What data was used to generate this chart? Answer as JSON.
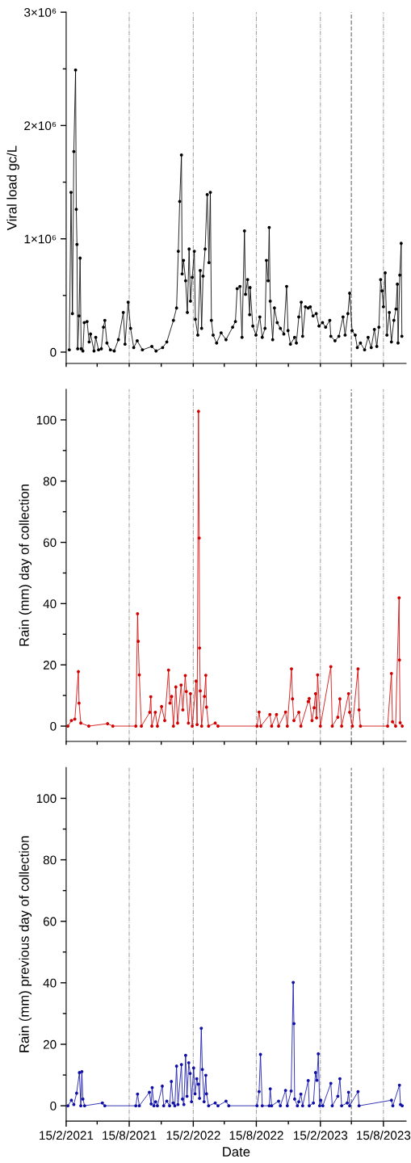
{
  "chart_data": [
    {
      "type": "line",
      "ylabel": "Viral load gc/L",
      "xlim": [
        "2021-02-15",
        "2023-10-19"
      ],
      "xticks": [
        {
          "value": "2021-02-15",
          "label": null
        },
        {
          "value": "2021-05-15",
          "label": null
        },
        {
          "value": "2021-08-15",
          "label": null
        },
        {
          "value": "2021-11-15",
          "label": null
        },
        {
          "value": "2022-02-15",
          "label": null
        },
        {
          "value": "2022-05-15",
          "label": null
        },
        {
          "value": "2022-08-15",
          "label": null
        },
        {
          "value": "2022-11-15",
          "label": null
        },
        {
          "value": "2023-02-15",
          "label": null
        },
        {
          "value": "2023-05-15",
          "label": null
        },
        {
          "value": "2023-08-15",
          "label": null
        }
      ],
      "ylim": [
        -100000,
        3000000
      ],
      "yticks": [
        {
          "value": 0,
          "label": "0"
        },
        {
          "value": 500000,
          "label": null
        },
        {
          "value": 1000000,
          "label": "1×10⁶"
        },
        {
          "value": 1500000,
          "label": null
        },
        {
          "value": 2000000,
          "label": "2×10⁶"
        },
        {
          "value": 2500000,
          "label": null
        },
        {
          "value": 3000000,
          "label": "3×10⁶"
        }
      ],
      "tick_labels": "y",
      "grid": "x",
      "marker": "circle",
      "line_style": "solid",
      "ref_lines": [
        {
          "axis": "x",
          "value": "2023-05-15",
          "label": null,
          "color": "#888888",
          "line_style": "dashed"
        }
      ],
      "series": [
        {
          "color": "#000000",
          "x": [
            "2021-02-24",
            "2021-03-01",
            "2021-03-05",
            "2021-03-09",
            "2021-03-14",
            "2021-03-16",
            "2021-03-18",
            "2021-03-20",
            "2021-03-24",
            "2021-03-27",
            "2021-03-30",
            "2021-04-04",
            "2021-04-08",
            "2021-04-16",
            "2021-04-22",
            "2021-04-26",
            "2021-05-06",
            "2021-05-11",
            "2021-05-19",
            "2021-05-27",
            "2021-06-02",
            "2021-06-06",
            "2021-06-12",
            "2021-06-22",
            "2021-07-03",
            "2021-07-15",
            "2021-07-29",
            "2021-08-03",
            "2021-08-12",
            "2021-08-19",
            "2021-08-28",
            "2021-09-07",
            "2021-09-22",
            "2021-10-19",
            "2021-10-31",
            "2021-11-19",
            "2021-12-01",
            "2021-12-20",
            "2021-12-29",
            "2022-01-03",
            "2022-01-07",
            "2022-01-12",
            "2022-01-14",
            "2022-01-18",
            "2022-01-24",
            "2022-01-29",
            "2022-02-03",
            "2022-02-07",
            "2022-02-12",
            "2022-02-18",
            "2022-02-21",
            "2022-02-28",
            "2022-03-07",
            "2022-03-11",
            "2022-03-15",
            "2022-03-21",
            "2022-03-27",
            "2022-04-01",
            "2022-04-05",
            "2022-04-08",
            "2022-04-13",
            "2022-04-23",
            "2022-05-06",
            "2022-05-20",
            "2022-06-08",
            "2022-06-16",
            "2022-06-21",
            "2022-06-29",
            "2022-07-05",
            "2022-07-12",
            "2022-07-15",
            "2022-07-21",
            "2022-07-27",
            "2022-07-28",
            "2022-08-05",
            "2022-08-14",
            "2022-08-25",
            "2022-09-01",
            "2022-09-09",
            "2022-09-13",
            "2022-09-18",
            "2022-09-21",
            "2022-09-24",
            "2022-10-01",
            "2022-10-06",
            "2022-10-14",
            "2022-10-23",
            "2022-11-02",
            "2022-11-10",
            "2022-11-14",
            "2022-11-21",
            "2022-12-03",
            "2022-12-08",
            "2022-12-15",
            "2022-12-22",
            "2022-12-26",
            "2023-01-03",
            "2023-01-11",
            "2023-01-17",
            "2023-01-25",
            "2023-02-03",
            "2023-02-11",
            "2023-02-21",
            "2023-03-02",
            "2023-03-14",
            "2023-03-17",
            "2023-03-29",
            "2023-04-09",
            "2023-04-21",
            "2023-04-27",
            "2023-05-05",
            "2023-05-10",
            "2023-05-17",
            "2023-05-26",
            "2023-06-01",
            "2023-06-10",
            "2023-06-22",
            "2023-07-02",
            "2023-07-11",
            "2023-07-20",
            "2023-07-27",
            "2023-08-02",
            "2023-08-07",
            "2023-08-11",
            "2023-08-15",
            "2023-08-20",
            "2023-08-25",
            "2023-09-01",
            "2023-09-07",
            "2023-09-14",
            "2023-09-20",
            "2023-09-24",
            "2023-09-26",
            "2023-10-01",
            "2023-10-05",
            "2023-10-07"
          ],
          "values": [
            20000,
            1410000,
            340000,
            1770000,
            2490000,
            1260000,
            950000,
            30000,
            320000,
            830000,
            30000,
            10000,
            260000,
            270000,
            90000,
            160000,
            10000,
            130000,
            20000,
            30000,
            220000,
            280000,
            80000,
            20000,
            10000,
            110000,
            350000,
            70000,
            440000,
            210000,
            40000,
            100000,
            20000,
            50000,
            10000,
            40000,
            90000,
            280000,
            390000,
            890000,
            1330000,
            1740000,
            690000,
            810000,
            630000,
            350000,
            910000,
            450000,
            660000,
            890000,
            290000,
            150000,
            720000,
            210000,
            670000,
            910000,
            1390000,
            790000,
            1410000,
            280000,
            150000,
            80000,
            170000,
            110000,
            220000,
            270000,
            560000,
            580000,
            130000,
            1070000,
            510000,
            640000,
            330000,
            570000,
            230000,
            150000,
            310000,
            130000,
            210000,
            810000,
            630000,
            1100000,
            450000,
            110000,
            390000,
            260000,
            210000,
            160000,
            580000,
            190000,
            70000,
            130000,
            80000,
            310000,
            440000,
            140000,
            400000,
            390000,
            400000,
            320000,
            340000,
            230000,
            260000,
            220000,
            280000,
            140000,
            100000,
            140000,
            310000,
            150000,
            340000,
            520000,
            190000,
            150000,
            40000,
            80000,
            20000,
            130000,
            40000,
            200000,
            50000,
            220000,
            640000,
            540000,
            400000,
            700000,
            150000,
            350000,
            90000,
            280000,
            380000,
            600000,
            80000,
            680000,
            960000,
            140000
          ]
        }
      ]
    },
    {
      "type": "line",
      "ylabel": "Rain (mm) day of collection",
      "xlim": [
        "2021-02-15",
        "2023-10-19"
      ],
      "xticks": [
        {
          "value": "2021-02-15",
          "label": null
        },
        {
          "value": "2021-05-15",
          "label": null
        },
        {
          "value": "2021-08-15",
          "label": null
        },
        {
          "value": "2021-11-15",
          "label": null
        },
        {
          "value": "2022-02-15",
          "label": null
        },
        {
          "value": "2022-05-15",
          "label": null
        },
        {
          "value": "2022-08-15",
          "label": null
        },
        {
          "value": "2022-11-15",
          "label": null
        },
        {
          "value": "2023-02-15",
          "label": null
        },
        {
          "value": "2023-05-15",
          "label": null
        },
        {
          "value": "2023-08-15",
          "label": null
        }
      ],
      "ylim": [
        -5,
        110
      ],
      "yticks": [
        0,
        {
          "value": 10,
          "label": null
        },
        20,
        {
          "value": 30,
          "label": null
        },
        40,
        {
          "value": 50,
          "label": null
        },
        60,
        {
          "value": 70,
          "label": null
        },
        80,
        {
          "value": 90,
          "label": null
        },
        100
      ],
      "tick_labels": "y",
      "grid": "x",
      "marker": "circle",
      "line_style": "solid",
      "ref_lines": [
        {
          "axis": "x",
          "value": "2023-05-15",
          "label": null,
          "color": "#888888",
          "line_style": "dashed"
        }
      ],
      "series": [
        {
          "color": "#d10000",
          "x": [
            "2021-02-20",
            "2021-03-02",
            "2021-03-12",
            "2021-03-22",
            "2021-03-24",
            "2021-03-29",
            "2021-04-21",
            "2021-06-14",
            "2021-06-29",
            "2021-09-03",
            "2021-09-08",
            "2021-09-10",
            "2021-09-13",
            "2021-09-19",
            "2021-10-13",
            "2021-10-16",
            "2021-10-19",
            "2021-10-29",
            "2021-11-04",
            "2021-11-16",
            "2021-11-25",
            "2021-12-06",
            "2021-12-10",
            "2021-12-15",
            "2021-12-20",
            "2021-12-27",
            "2022-01-01",
            "2022-01-11",
            "2022-01-16",
            "2022-01-23",
            "2022-01-26",
            "2022-02-01",
            "2022-02-07",
            "2022-02-12",
            "2022-02-23",
            "2022-02-26",
            "2022-03-02",
            "2022-03-04",
            "2022-03-05",
            "2022-03-07",
            "2022-03-11",
            "2022-03-19",
            "2022-03-23",
            "2022-03-25",
            "2022-03-31",
            "2022-04-19",
            "2022-04-27",
            "2022-08-17",
            "2022-08-23",
            "2022-08-28",
            "2022-09-23",
            "2022-09-28",
            "2022-10-12",
            "2022-10-18",
            "2022-11-07",
            "2022-11-12",
            "2022-11-24",
            "2022-11-27",
            "2022-12-01",
            "2022-12-15",
            "2022-12-21",
            "2023-01-11",
            "2023-01-14",
            "2023-01-22",
            "2023-01-28",
            "2023-02-01",
            "2023-02-04",
            "2023-02-07",
            "2023-02-15",
            "2023-03-17",
            "2023-03-21",
            "2023-04-06",
            "2023-04-12",
            "2023-04-17",
            "2023-05-07",
            "2023-05-10",
            "2023-05-18",
            "2023-06-03",
            "2023-06-06",
            "2023-06-10",
            "2023-08-27",
            "2023-09-07",
            "2023-09-10",
            "2023-09-19",
            "2023-09-29",
            "2023-09-30",
            "2023-10-02",
            "2023-10-08"
          ],
          "values": [
            0,
            1.8,
            2.3,
            17.8,
            7.5,
            1.0,
            0,
            0.8,
            0,
            0,
            36.7,
            27.7,
            16.7,
            0,
            4.5,
            9.6,
            0,
            4.5,
            0,
            6.4,
            1.8,
            18.3,
            7.5,
            9.7,
            0,
            12.8,
            1.0,
            13.4,
            5.3,
            16.5,
            11.3,
            1.0,
            10.6,
            0,
            14.7,
            0.5,
            102.8,
            61.4,
            25.5,
            11.5,
            0,
            9.7,
            16.6,
            6.2,
            0,
            1.0,
            0,
            0,
            4.6,
            0,
            3.8,
            0,
            3.8,
            0,
            4.6,
            0,
            18.7,
            8.9,
            1.8,
            4.5,
            0,
            8.0,
            9.0,
            1.8,
            6.0,
            10.6,
            2.7,
            16.7,
            0,
            19.4,
            0,
            2.9,
            8.9,
            0,
            10.6,
            4.5,
            0,
            18.7,
            5.3,
            0,
            0,
            17.2,
            1.4,
            0,
            41.9,
            21.6,
            1.1,
            0
          ]
        }
      ]
    },
    {
      "type": "line",
      "xlabel": "Date",
      "ylabel": "Rain (mm) previous day of collection",
      "xlim": [
        "2021-02-15",
        "2023-10-19"
      ],
      "xticks": [
        {
          "value": "2021-02-15",
          "label": "15/2/2021"
        },
        {
          "value": "2021-05-15",
          "label": null
        },
        {
          "value": "2021-08-15",
          "label": "15/8/2021"
        },
        {
          "value": "2021-11-15",
          "label": null
        },
        {
          "value": "2022-02-15",
          "label": "15/2/2022"
        },
        {
          "value": "2022-05-15",
          "label": null
        },
        {
          "value": "2022-08-15",
          "label": "15/8/2022"
        },
        {
          "value": "2022-11-15",
          "label": null
        },
        {
          "value": "2023-02-15",
          "label": "15/2/2023"
        },
        {
          "value": "2023-05-15",
          "label": null
        },
        {
          "value": "2023-08-15",
          "label": "15/8/2023"
        }
      ],
      "ylim": [
        -5,
        110
      ],
      "yticks": [
        0,
        {
          "value": 10,
          "label": null
        },
        20,
        {
          "value": 30,
          "label": null
        },
        40,
        {
          "value": 50,
          "label": null
        },
        60,
        {
          "value": 70,
          "label": null
        },
        80,
        {
          "value": 90,
          "label": null
        },
        100
      ],
      "grid": "x",
      "marker": "circle",
      "line_style": "solid",
      "ref_lines": [
        {
          "axis": "x",
          "value": "2023-05-15",
          "label": null,
          "color": "#888888",
          "line_style": "dashed"
        }
      ],
      "series": [
        {
          "color": "#1010a8",
          "x": [
            "2021-02-20",
            "2021-03-02",
            "2021-03-09",
            "2021-03-17",
            "2021-03-25",
            "2021-03-29",
            "2021-04-01",
            "2021-04-04",
            "2021-04-09",
            "2021-05-30",
            "2021-06-06",
            "2021-09-03",
            "2021-09-08",
            "2021-09-13",
            "2021-10-12",
            "2021-10-17",
            "2021-10-20",
            "2021-10-25",
            "2021-10-30",
            "2021-11-04",
            "2021-11-18",
            "2021-11-22",
            "2021-12-01",
            "2021-12-09",
            "2021-12-14",
            "2021-12-19",
            "2021-12-24",
            "2021-12-29",
            "2022-01-02",
            "2022-01-12",
            "2022-01-15",
            "2022-01-19",
            "2022-01-24",
            "2022-01-28",
            "2022-02-02",
            "2022-02-06",
            "2022-02-10",
            "2022-02-16",
            "2022-02-20",
            "2022-02-25",
            "2022-03-01",
            "2022-03-05",
            "2022-03-10",
            "2022-03-13",
            "2022-03-18",
            "2022-03-23",
            "2022-03-25",
            "2022-03-31",
            "2022-04-19",
            "2022-04-27",
            "2022-05-20",
            "2022-05-28",
            "2022-08-17",
            "2022-08-23",
            "2022-08-27",
            "2022-09-01",
            "2022-09-21",
            "2022-09-24",
            "2022-09-28",
            "2022-10-18",
            "2022-10-23",
            "2022-11-07",
            "2022-11-12",
            "2022-11-23",
            "2022-11-29",
            "2022-12-01",
            "2022-12-03",
            "2022-12-11",
            "2022-12-15",
            "2022-12-21",
            "2022-12-26",
            "2023-01-11",
            "2023-01-14",
            "2023-01-26",
            "2023-02-01",
            "2023-02-05",
            "2023-02-09",
            "2023-02-13",
            "2023-02-16",
            "2023-02-22",
            "2023-03-17",
            "2023-03-21",
            "2023-04-06",
            "2023-04-12",
            "2023-04-17",
            "2023-05-03",
            "2023-05-07",
            "2023-05-10",
            "2023-06-03",
            "2023-06-06",
            "2023-09-07",
            "2023-09-11",
            "2023-09-30",
            "2023-10-03",
            "2023-10-08"
          ],
          "values": [
            0,
            1.8,
            0.4,
            4.1,
            10.8,
            0,
            11.1,
            2.2,
            0,
            0.9,
            0,
            0,
            3.8,
            0,
            4.4,
            0.6,
            5.9,
            0,
            1.3,
            0,
            6.4,
            0,
            1.5,
            0,
            7.9,
            0.9,
            0,
            12.9,
            0.4,
            13.4,
            2.2,
            0.4,
            16.4,
            3.1,
            14.0,
            10.5,
            1.3,
            12.3,
            3.9,
            8.8,
            7.0,
            2.4,
            25.2,
            11.8,
            1.3,
            9.9,
            3.9,
            0,
            0.9,
            0,
            1.5,
            0,
            0,
            4.6,
            16.7,
            0,
            0,
            5.5,
            0,
            1.5,
            0,
            5.0,
            0,
            4.8,
            40.1,
            26.7,
            2.2,
            0,
            1.3,
            3.8,
            0,
            8.2,
            0,
            0.9,
            10.8,
            8.3,
            16.9,
            0,
            1.8,
            0,
            7.3,
            0,
            3.1,
            8.8,
            0,
            0.9,
            4.4,
            0,
            4.6,
            0,
            1.8,
            0,
            6.7,
            0.4,
            0
          ]
        }
      ]
    }
  ]
}
